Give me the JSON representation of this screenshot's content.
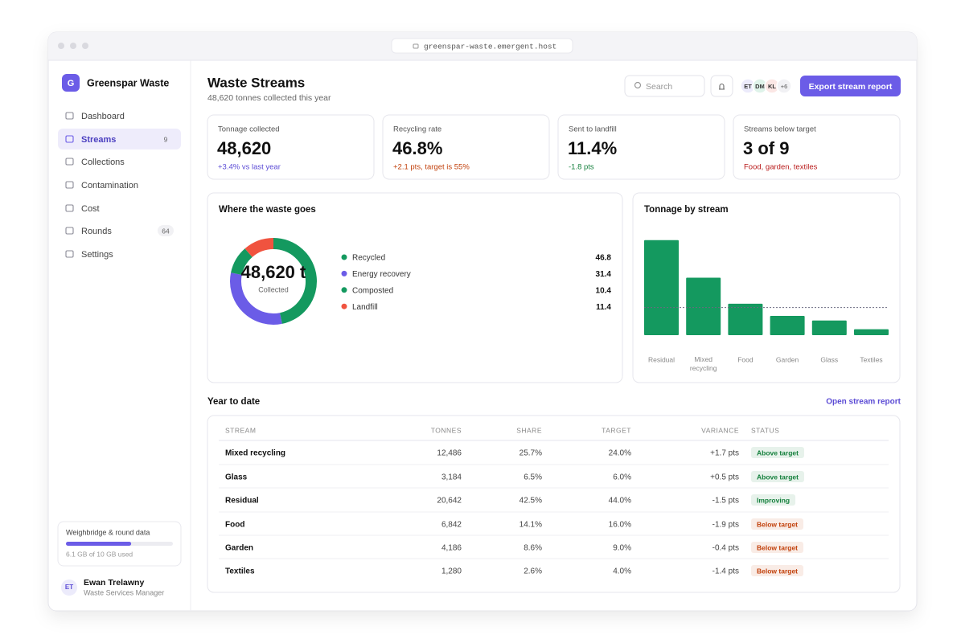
{
  "browser": {
    "url": "greenspar-waste.emergent.host"
  },
  "sidebar": {
    "brand_initial": "G",
    "brand": "Greenspar Waste",
    "nav": [
      {
        "label": "Dashboard"
      },
      {
        "label": "Streams",
        "badge": 9,
        "active": true
      },
      {
        "label": "Collections"
      },
      {
        "label": "Contamination"
      },
      {
        "label": "Cost"
      },
      {
        "label": "Rounds",
        "badge": 64
      },
      {
        "label": "Settings"
      }
    ],
    "storage": {
      "title": "Weighbridge & round data",
      "used": 6.1,
      "total": 10,
      "caption": "6.1 GB of 10 GB used"
    },
    "user": {
      "initials": "ET",
      "name": "Ewan Trelawny",
      "role": "Waste Services Manager"
    }
  },
  "header": {
    "title": "Waste Streams",
    "subtitle": "48,620 tonnes collected this year",
    "search_placeholder": "Search",
    "avatars": [
      "ET",
      "DM",
      "KL"
    ],
    "avatar_colors": [
      "#ecebfb",
      "#dff3ea",
      "#fbe7e5"
    ],
    "more": "+6",
    "button": "Export stream report"
  },
  "kpis": [
    {
      "label": "Tonnage collected",
      "value": "48,620",
      "delta": "+3.4% vs last year",
      "delta_color": "#5b4bd5"
    },
    {
      "label": "Recycling rate",
      "value": "46.8%",
      "delta": "+2.1 pts, target is 55%",
      "delta_color": "#c2410c"
    },
    {
      "label": "Sent to landfill",
      "value": "11.4%",
      "delta": "-1.8 pts",
      "delta_color": "#15803d"
    },
    {
      "label": "Streams below target",
      "value": "3 of 9",
      "delta": "Food, garden, textiles",
      "delta_color": "#b91c1c"
    }
  ],
  "chart_data": [
    {
      "type": "donut",
      "title": "Where the waste goes",
      "center_value": "48,620 t",
      "center_label": "Collected",
      "categories": [
        "Recycled",
        "Energy recovery",
        "Composted",
        "Landfill"
      ],
      "values": [
        46.8,
        31.4,
        10.4,
        11.4
      ],
      "colors": [
        "#14995f",
        "#6b5ce7",
        "#14995f",
        "#f0533f"
      ]
    },
    {
      "type": "bar",
      "title": "Tonnage by stream",
      "categories": [
        "Residual",
        "Mixed recycling",
        "Food",
        "Garden",
        "Glass",
        "Textiles"
      ],
      "values": [
        20642,
        12486,
        6842,
        4186,
        3184,
        1280
      ],
      "ylim": [
        0,
        22000
      ],
      "color": "#14995f",
      "reference_line": 6000
    }
  ],
  "table": {
    "title": "Year to date",
    "link": "Open stream report",
    "columns": [
      "STREAM",
      "TONNES",
      "SHARE",
      "TARGET",
      "VARIANCE",
      "STATUS"
    ],
    "rows": [
      [
        "Mixed recycling",
        "12,486",
        "25.7%",
        "24.0%",
        "+1.7 pts",
        "Above target"
      ],
      [
        "Glass",
        "3,184",
        "6.5%",
        "6.0%",
        "+0.5 pts",
        "Above target"
      ],
      [
        "Residual",
        "20,642",
        "42.5%",
        "44.0%",
        "-1.5 pts",
        "Improving"
      ],
      [
        "Food",
        "6,842",
        "14.1%",
        "16.0%",
        "-1.9 pts",
        "Below target"
      ],
      [
        "Garden",
        "4,186",
        "8.6%",
        "9.0%",
        "-0.4 pts",
        "Below target"
      ],
      [
        "Textiles",
        "1,280",
        "2.6%",
        "4.0%",
        "-1.4 pts",
        "Below target"
      ]
    ],
    "status_colors": [
      "#15803d",
      "#15803d",
      "#15803d",
      "#c2410c",
      "#c2410c",
      "#c2410c"
    ]
  }
}
